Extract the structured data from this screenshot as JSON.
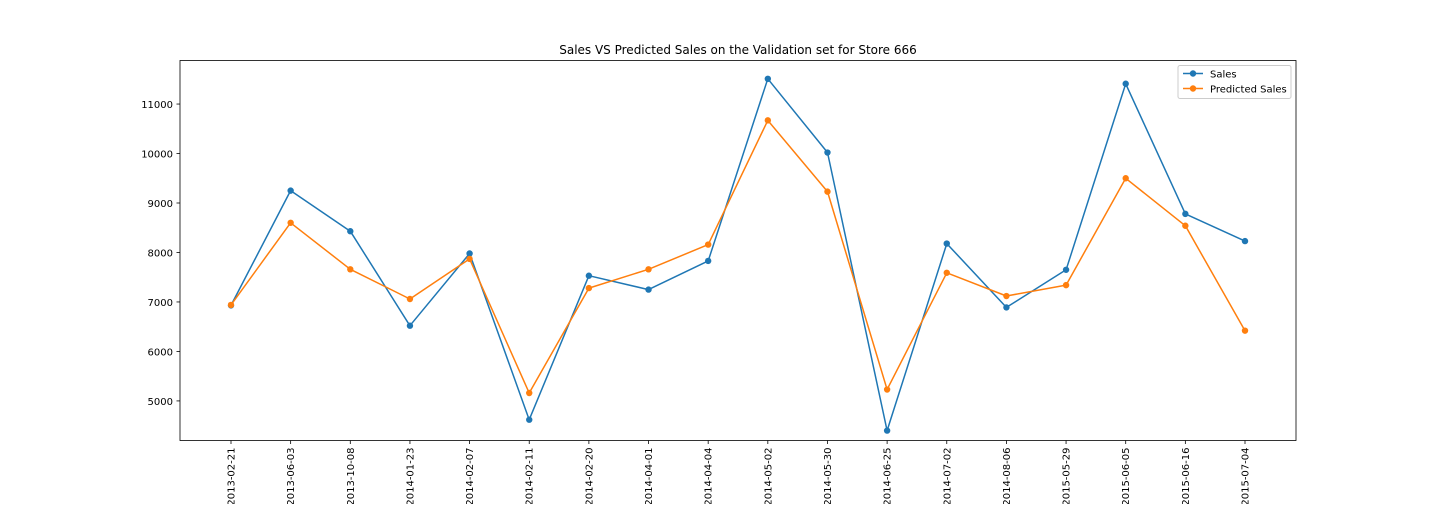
{
  "chart_data": {
    "type": "line",
    "title": "Sales VS Predicted Sales on the Validation set for Store 666",
    "xlabel": "",
    "ylabel": "",
    "categories": [
      "2013-02-21",
      "2013-06-03",
      "2013-10-08",
      "2014-01-23",
      "2014-02-07",
      "2014-02-11",
      "2014-02-20",
      "2014-04-01",
      "2014-04-04",
      "2014-05-02",
      "2014-05-30",
      "2014-06-25",
      "2014-07-02",
      "2014-08-06",
      "2015-05-29",
      "2015-06-05",
      "2015-06-16",
      "2015-07-04"
    ],
    "series": [
      {
        "name": "Sales",
        "color": "#1f77b4",
        "values": [
          6930,
          9250,
          8430,
          6520,
          7980,
          4620,
          7530,
          7250,
          7830,
          11510,
          10020,
          4400,
          8180,
          6890,
          7650,
          11410,
          8780,
          8230
        ]
      },
      {
        "name": "Predicted Sales",
        "color": "#ff7f0e",
        "values": [
          6940,
          8600,
          7660,
          7060,
          7870,
          5160,
          7280,
          7660,
          8160,
          10670,
          9230,
          5230,
          7590,
          7120,
          7340,
          9500,
          8540,
          6420
        ]
      }
    ],
    "yticks": [
      5000,
      6000,
      7000,
      8000,
      9000,
      10000,
      11000
    ],
    "ylim": [
      4200,
      11880
    ],
    "legend": "top-right",
    "grid": false
  }
}
